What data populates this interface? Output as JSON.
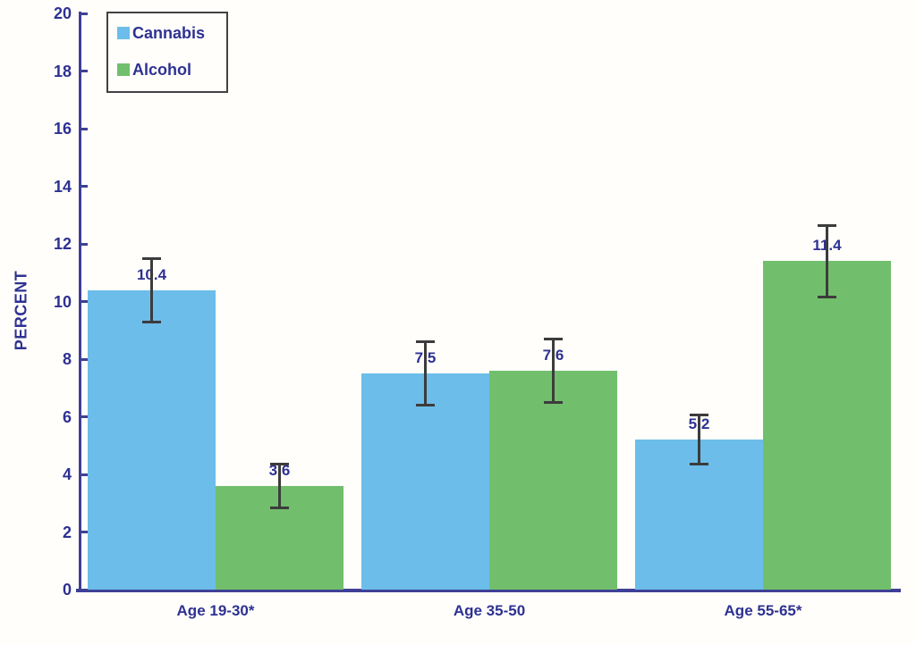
{
  "chart_data": {
    "type": "bar",
    "title": "",
    "xlabel": "",
    "ylabel": "PERCENT",
    "categories": [
      "Age 19-30*",
      "Age 35-50",
      "Age 55-65*"
    ],
    "series": [
      {
        "name": "Cannabis",
        "color": "#6cbde9",
        "values": [
          10.4,
          7.5,
          5.2
        ],
        "errors": [
          1.1,
          1.1,
          0.85
        ]
      },
      {
        "name": "Alcohol",
        "color": "#71bf6c",
        "values": [
          3.6,
          7.6,
          11.4
        ],
        "errors": [
          0.75,
          1.1,
          1.25
        ]
      }
    ],
    "value_label_decimals": 1,
    "ylim": [
      0,
      20
    ],
    "ytick_step": 2,
    "grid": false,
    "legend_position": "top-left",
    "error_bars": true
  },
  "style_colors": {
    "axis": "#3e4095",
    "text": "#2e3192",
    "error_bar": "#3c3c3c",
    "background": "#fffefb",
    "legend_border": "#424242"
  }
}
